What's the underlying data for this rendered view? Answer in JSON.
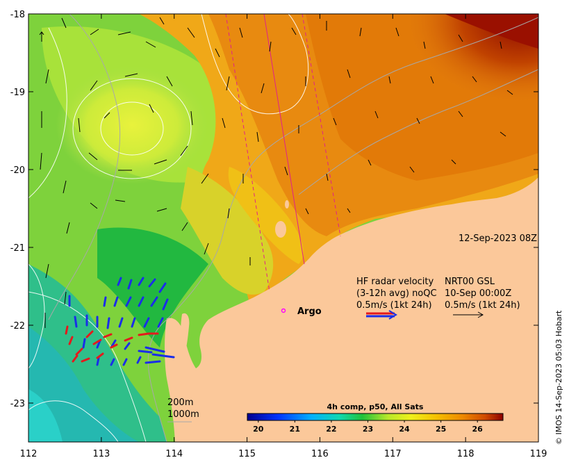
{
  "map": {
    "x_ticks": [
      "112",
      "113",
      "114",
      "115",
      "116",
      "117",
      "118",
      "119"
    ],
    "y_ticks": [
      "-18",
      "-19",
      "-20",
      "-21",
      "-22",
      "-23"
    ],
    "lon_range": [
      112,
      119
    ],
    "lat_range": [
      -23.5,
      -18
    ]
  },
  "timestamp": "12-Sep-2023 08Z",
  "radar_legend": {
    "line1_left": "HF radar velocity",
    "line1_right": "NRT00 GSL",
    "line2_left": "(3-12h avg) noQC",
    "line2_right": "10-Sep 00:00Z",
    "line3_left": "0.5m/s (1kt 24h)",
    "line3_right": "0.5m/s (1kt 24h)"
  },
  "argo_label": "Argo",
  "depth_contours": [
    "200m",
    "1000m"
  ],
  "colorbar": {
    "title": "4h comp, p50, All Sats",
    "tick_labels": [
      "20",
      "21",
      "22",
      "23",
      "24",
      "25",
      "26"
    ],
    "range": [
      19.7,
      26.7
    ]
  },
  "credit": "© IMOS 14-Sep-2023 05:03 Hobart",
  "colors": {
    "land": "#fbc89a",
    "radar_red": "#e41a1c",
    "radar_blue": "#1a2ee8",
    "argo": "#ff00ff",
    "track": "#e0218a"
  }
}
